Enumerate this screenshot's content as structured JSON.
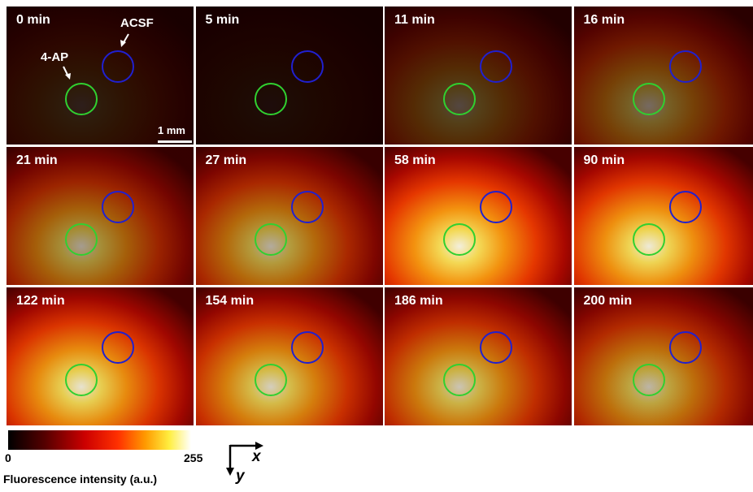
{
  "panels": [
    {
      "label": "0 min"
    },
    {
      "label": "5 min"
    },
    {
      "label": "11 min"
    },
    {
      "label": "16 min"
    },
    {
      "label": "21 min"
    },
    {
      "label": "27 min"
    },
    {
      "label": "58 min"
    },
    {
      "label": "90 min"
    },
    {
      "label": "122 min"
    },
    {
      "label": "154 min"
    },
    {
      "label": "186 min"
    },
    {
      "label": "200 min"
    }
  ],
  "annotations": {
    "acsf": "ACSF",
    "ap": "4-AP",
    "scale_bar": "1 mm"
  },
  "colorbar": {
    "min": "0",
    "max": "255",
    "label": "Fluorescence intensity (a.u.)"
  },
  "axes": {
    "x": "x",
    "y": "y"
  }
}
